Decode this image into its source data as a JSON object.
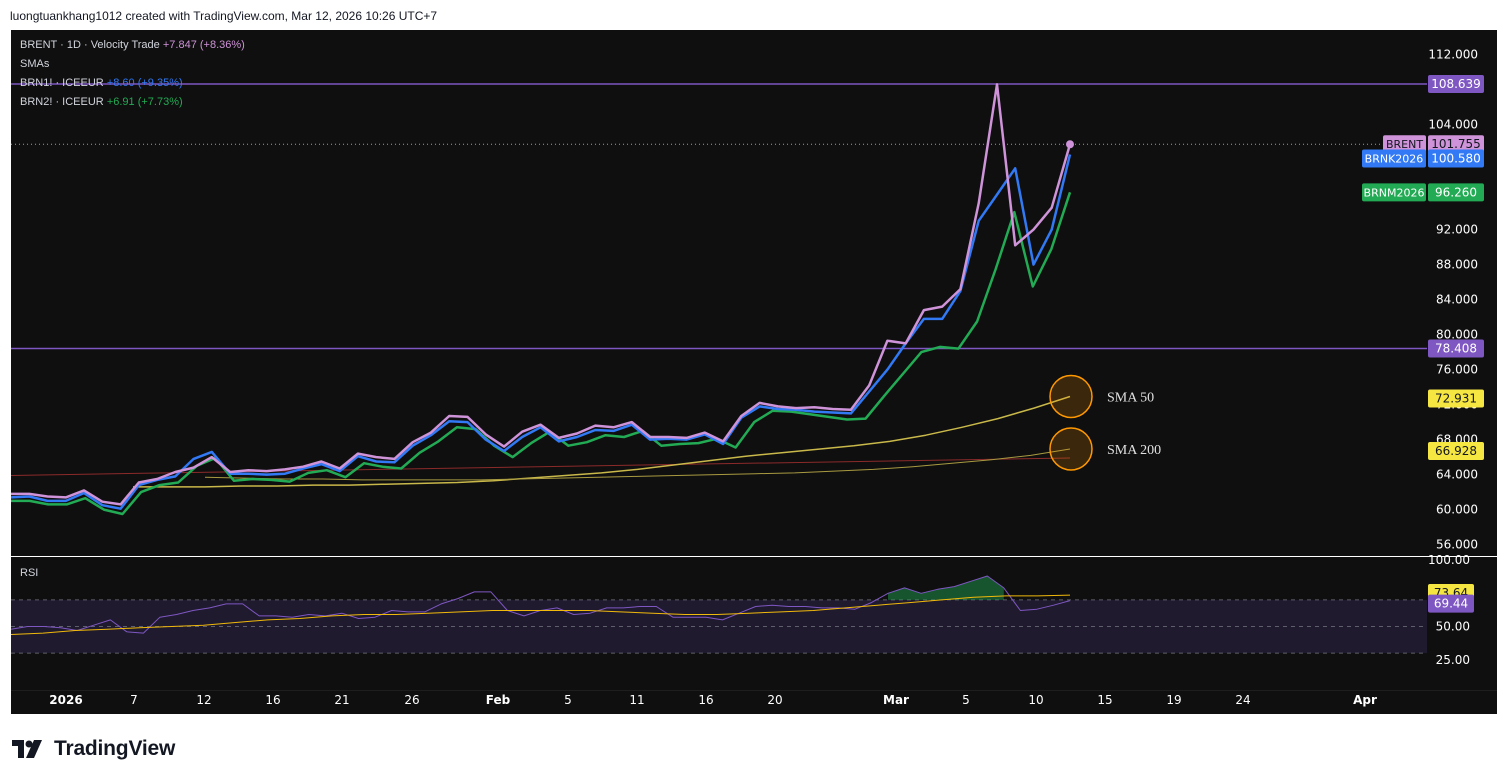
{
  "header": {
    "credit": "luongtuankhang1012 created with TradingView.com, Mar 12, 2026 10:26 UTC+7"
  },
  "legend": {
    "main": {
      "symbol": "BRENT · 1D · Velocity Trade",
      "change": "+7.847 (+8.36%)"
    },
    "indicator": "SMAs",
    "series2": {
      "symbol": "BRN1! · ICEEUR",
      "change": "+8.60 (+9.35%)"
    },
    "series3": {
      "symbol": "BRN2! · ICEEUR",
      "change": "+6.91 (+7.73%)"
    }
  },
  "annotations": {
    "sma50": "SMA 50",
    "sma200": "SMA 200"
  },
  "rsi_label": "RSI",
  "footer": {
    "brand": "TradingView"
  },
  "colors": {
    "brent": "#ce93d8",
    "brnk": "#3179f5",
    "brnm": "#22ab54",
    "sma50": "#c9b84a",
    "sma200": "#a89a40",
    "hline": "#7e57c2",
    "rsi": "#7e57c2",
    "rsi_ma": "#f0b90b"
  },
  "chart_data": [
    {
      "type": "line",
      "title": "BRENT · 1D · Velocity Trade",
      "x_ticks": [
        "2026",
        "7",
        "12",
        "16",
        "21",
        "26",
        "Feb",
        "5",
        "11",
        "16",
        "20",
        "Mar",
        "5",
        "10",
        "15",
        "19",
        "24",
        "Apr"
      ],
      "y_ticks": [
        112,
        104,
        100,
        92,
        88,
        84,
        80,
        76,
        72,
        68,
        64,
        60,
        56
      ],
      "ylim": [
        55,
        113
      ],
      "horizontal_lines": [
        108.639,
        78.408
      ],
      "series": [
        {
          "name": "BRENT",
          "last": 101.755,
          "values": [
            61.8,
            61.8,
            61.5,
            61.4,
            62.2,
            60.9,
            60.6,
            63.1,
            63.5,
            64.3,
            64.8,
            66.0,
            64.3,
            64.5,
            64.4,
            64.6,
            64.9,
            65.5,
            64.7,
            66.4,
            66.0,
            65.8,
            67.7,
            68.8,
            70.7,
            70.6,
            68.6,
            67.2,
            68.9,
            69.7,
            68.2,
            68.7,
            69.6,
            69.4,
            70.0,
            68.3,
            68.3,
            68.2,
            68.8,
            67.8,
            70.7,
            72.2,
            71.8,
            71.6,
            71.7,
            71.5,
            71.4,
            74.2,
            79.3,
            79.0,
            82.8,
            83.2,
            85.2,
            95.0,
            108.6,
            90.2,
            92.0,
            94.5,
            101.755
          ]
        },
        {
          "name": "BRNK2026",
          "last": 100.58,
          "values": [
            61.4,
            61.5,
            61.0,
            61.0,
            61.9,
            60.5,
            60.1,
            62.8,
            63.4,
            63.8,
            65.8,
            66.6,
            64.1,
            64.1,
            64.0,
            64.1,
            64.7,
            65.2,
            64.4,
            66.1,
            65.5,
            65.4,
            67.3,
            68.5,
            70.1,
            70.0,
            68.0,
            66.7,
            68.3,
            69.4,
            67.8,
            68.3,
            69.1,
            69.0,
            69.7,
            68.0,
            68.1,
            68.0,
            68.6,
            67.5,
            70.5,
            71.8,
            71.5,
            71.4,
            71.2,
            71.1,
            71.0,
            73.5,
            76.0,
            79.0,
            81.8,
            81.8,
            85.0,
            93.0,
            96.0,
            99.0,
            88.0,
            92.0,
            100.58
          ]
        },
        {
          "name": "BRNM2026",
          "last": 96.26,
          "values": [
            61.0,
            61.0,
            60.6,
            60.6,
            61.3,
            60.0,
            59.5,
            62.0,
            62.8,
            63.1,
            65.0,
            65.9,
            63.3,
            63.5,
            63.4,
            63.2,
            64.2,
            64.5,
            63.7,
            65.3,
            64.9,
            64.7,
            66.5,
            67.8,
            69.4,
            69.2,
            67.3,
            66.0,
            67.6,
            68.9,
            67.3,
            67.7,
            68.5,
            68.3,
            69.0,
            67.3,
            67.5,
            67.6,
            68.1,
            67.1,
            70.0,
            71.3,
            71.2,
            70.9,
            70.6,
            70.3,
            70.4,
            73.0,
            75.5,
            78.0,
            78.6,
            78.4,
            81.5,
            87.5,
            94.0,
            85.5,
            89.8,
            96.26
          ]
        },
        {
          "name": "SMA 50",
          "last": 72.931,
          "values": [
            62.6,
            62.6,
            62.6,
            62.7,
            62.7,
            62.8,
            62.8,
            62.9,
            63.0,
            63.1,
            63.3,
            63.6,
            63.9,
            64.2,
            64.6,
            65.1,
            65.6,
            66.1,
            66.5,
            66.9,
            67.3,
            67.8,
            68.5,
            69.4,
            70.4,
            71.6,
            72.931
          ]
        },
        {
          "name": "SMA 200",
          "last": 66.928,
          "values": [
            63.7,
            63.6,
            63.5,
            63.5,
            63.4,
            63.4,
            63.4,
            63.4,
            63.5,
            63.6,
            63.7,
            63.8,
            63.9,
            64.0,
            64.1,
            64.2,
            64.4,
            64.6,
            64.9,
            65.3,
            65.7,
            66.2,
            66.928
          ]
        }
      ]
    },
    {
      "type": "line",
      "title": "RSI",
      "y_ticks": [
        100,
        50,
        25
      ],
      "ylim": [
        15,
        100
      ],
      "bands": [
        70,
        50,
        30
      ],
      "series": [
        {
          "name": "RSI",
          "last": 69.44,
          "values": [
            48,
            50,
            50,
            49,
            47,
            51,
            55,
            46,
            45,
            57,
            59,
            62,
            64,
            67,
            67,
            58,
            58,
            57,
            59,
            58,
            60,
            56,
            57,
            62,
            61,
            61,
            67,
            71,
            76,
            76,
            62,
            58,
            62,
            64,
            59,
            60,
            64,
            64,
            65,
            65,
            57,
            57,
            57,
            55,
            60,
            65,
            66,
            65,
            65,
            64,
            64,
            63,
            68,
            75,
            79,
            75,
            78,
            80,
            84,
            88,
            79,
            62,
            63,
            66,
            69.44
          ]
        },
        {
          "name": "RSI MA",
          "last": 73.64,
          "values": [
            44,
            45,
            47,
            48,
            49,
            50,
            51,
            53,
            55,
            56,
            58,
            59,
            59,
            60,
            61,
            62,
            62,
            62,
            62,
            61,
            60,
            59,
            59,
            60,
            61,
            62,
            64,
            66,
            68,
            70,
            72,
            73,
            73,
            73.64
          ]
        }
      ]
    }
  ],
  "price_labels": [
    {
      "name": "",
      "value": "108.639"
    },
    {
      "name": "BRENT",
      "value": "101.755"
    },
    {
      "name": "BRNK2026",
      "value": "100.580"
    },
    {
      "name": "BRNM2026",
      "value": "96.260"
    },
    {
      "name": "",
      "value": "78.408"
    },
    {
      "name": "",
      "value": "72.931"
    },
    {
      "name": "",
      "value": "66.928"
    }
  ],
  "rsi_labels": [
    "73.64",
    "69.44"
  ]
}
